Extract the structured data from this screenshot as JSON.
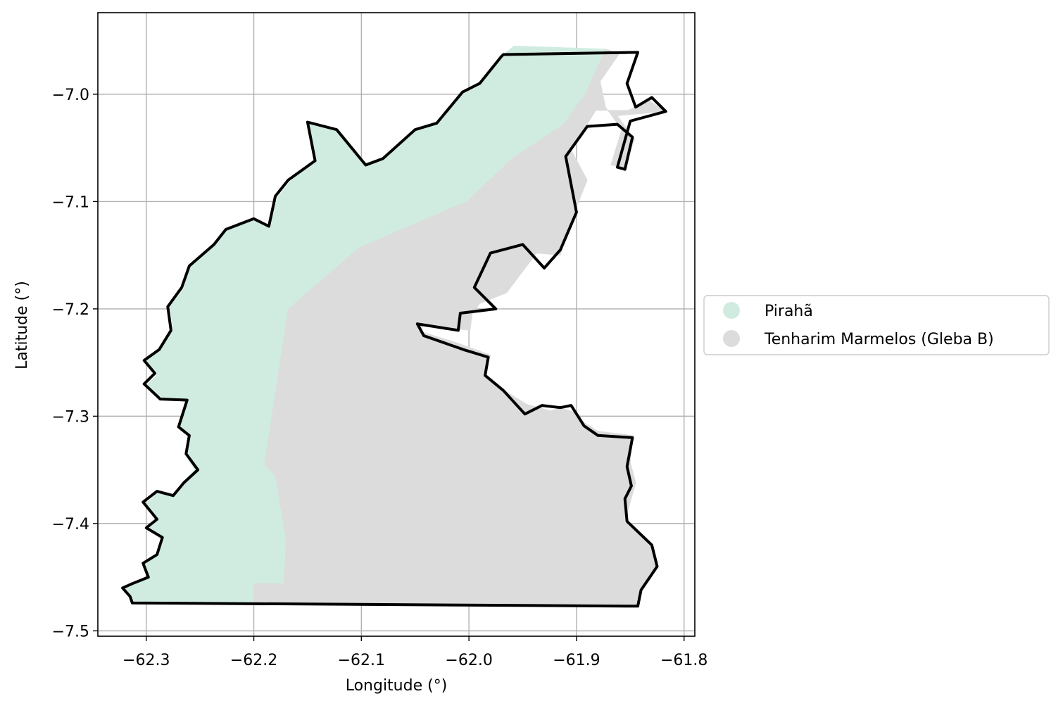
{
  "chart_data": {
    "type": "map",
    "xlabel": "Longitude (°)",
    "ylabel": "Latitude (°)",
    "xlim": [
      -62.345,
      -61.79
    ],
    "ylim": [
      -7.505,
      -6.924
    ],
    "xticks": [
      -62.3,
      -62.2,
      -62.1,
      -62.0,
      -61.9,
      -61.8
    ],
    "yticks": [
      -7.0,
      -7.1,
      -7.2,
      -7.3,
      -7.4,
      -7.5
    ],
    "xtick_labels": [
      "−62.3",
      "−62.2",
      "−62.1",
      "−62.0",
      "−61.9",
      "−61.8"
    ],
    "ytick_labels": [
      "−7.0",
      "−7.1",
      "−7.2",
      "−7.3",
      "−7.4",
      "−7.5"
    ],
    "grid": true,
    "legend_position": "outside-right",
    "regions": [
      {
        "name": "Pirahã",
        "color": "#d0ece0",
        "polygon": [
          [
            -62.313,
            -7.474
          ],
          [
            -62.315,
            -7.468
          ],
          [
            -62.32,
            -7.461
          ],
          [
            -62.312,
            -7.457
          ],
          [
            -62.298,
            -7.451
          ],
          [
            -62.303,
            -7.437
          ],
          [
            -62.29,
            -7.428
          ],
          [
            -62.285,
            -7.413
          ],
          [
            -62.3,
            -7.405
          ],
          [
            -62.29,
            -7.395
          ],
          [
            -62.3,
            -7.381
          ],
          [
            -62.288,
            -7.37
          ],
          [
            -62.275,
            -7.373
          ],
          [
            -62.267,
            -7.363
          ],
          [
            -62.255,
            -7.35
          ],
          [
            -62.263,
            -7.336
          ],
          [
            -62.26,
            -7.32
          ],
          [
            -62.27,
            -7.31
          ],
          [
            -62.262,
            -7.287
          ],
          [
            -62.285,
            -7.283
          ],
          [
            -62.3,
            -7.271
          ],
          [
            -62.29,
            -7.262
          ],
          [
            -62.3,
            -7.249
          ],
          [
            -62.286,
            -7.236
          ],
          [
            -62.275,
            -7.22
          ],
          [
            -62.278,
            -7.198
          ],
          [
            -62.265,
            -7.181
          ],
          [
            -62.26,
            -7.162
          ],
          [
            -62.236,
            -7.141
          ],
          [
            -62.225,
            -7.127
          ],
          [
            -62.2,
            -7.117
          ],
          [
            -62.185,
            -7.122
          ],
          [
            -62.178,
            -7.096
          ],
          [
            -62.167,
            -7.082
          ],
          [
            -62.143,
            -7.063
          ],
          [
            -62.148,
            -7.027
          ],
          [
            -62.122,
            -7.035
          ],
          [
            -62.096,
            -7.064
          ],
          [
            -62.08,
            -7.059
          ],
          [
            -62.05,
            -7.033
          ],
          [
            -62.03,
            -7.028
          ],
          [
            -62.006,
            -7.0
          ],
          [
            -61.99,
            -6.992
          ],
          [
            -61.968,
            -6.963
          ],
          [
            -61.958,
            -6.955
          ],
          [
            -61.873,
            -6.958
          ],
          [
            -61.892,
            -7.0
          ],
          [
            -61.912,
            -7.028
          ],
          [
            -61.96,
            -7.06
          ],
          [
            -62.002,
            -7.1
          ],
          [
            -62.102,
            -7.143
          ],
          [
            -62.168,
            -7.2
          ],
          [
            -62.19,
            -7.345
          ],
          [
            -62.18,
            -7.355
          ],
          [
            -62.17,
            -7.415
          ],
          [
            -62.172,
            -7.456
          ],
          [
            -62.2,
            -7.456
          ],
          [
            -62.2,
            -7.474
          ]
        ]
      },
      {
        "name": "Tenharim Marmelos (Gleba B)",
        "color": "#dcdcdc",
        "polygon": [
          [
            -61.873,
            -6.958
          ],
          [
            -61.86,
            -6.962
          ],
          [
            -61.878,
            -6.988
          ],
          [
            -61.873,
            -7.012
          ],
          [
            -61.858,
            -7.033
          ],
          [
            -61.868,
            -7.066
          ],
          [
            -61.855,
            -7.068
          ],
          [
            -61.846,
            -7.042
          ],
          [
            -61.862,
            -7.02
          ],
          [
            -61.818,
            -7.016
          ],
          [
            -61.832,
            -7.006
          ],
          [
            -61.852,
            -7.015
          ],
          [
            -61.882,
            -7.015
          ],
          [
            -61.905,
            -7.052
          ],
          [
            -61.89,
            -7.08
          ],
          [
            -61.906,
            -7.12
          ],
          [
            -61.915,
            -7.15
          ],
          [
            -61.937,
            -7.148
          ],
          [
            -61.965,
            -7.185
          ],
          [
            -61.99,
            -7.195
          ],
          [
            -61.997,
            -7.205
          ],
          [
            -61.999,
            -7.22
          ],
          [
            -62.04,
            -7.215
          ],
          [
            -62.048,
            -7.22
          ],
          [
            -62.01,
            -7.232
          ],
          [
            -61.98,
            -7.243
          ],
          [
            -61.985,
            -7.261
          ],
          [
            -61.968,
            -7.275
          ],
          [
            -61.956,
            -7.283
          ],
          [
            -61.946,
            -7.289
          ],
          [
            -61.935,
            -7.292
          ],
          [
            -61.924,
            -7.295
          ],
          [
            -61.915,
            -7.292
          ],
          [
            -61.9,
            -7.297
          ],
          [
            -61.893,
            -7.306
          ],
          [
            -61.88,
            -7.314
          ],
          [
            -61.848,
            -7.318
          ],
          [
            -61.85,
            -7.343
          ],
          [
            -61.845,
            -7.362
          ],
          [
            -61.85,
            -7.38
          ],
          [
            -61.855,
            -7.399
          ],
          [
            -61.829,
            -7.421
          ],
          [
            -61.825,
            -7.438
          ],
          [
            -61.84,
            -7.463
          ],
          [
            -61.843,
            -7.476
          ],
          [
            -62.2,
            -7.474
          ],
          [
            -62.2,
            -7.456
          ],
          [
            -62.172,
            -7.456
          ],
          [
            -62.17,
            -7.415
          ],
          [
            -62.18,
            -7.355
          ],
          [
            -62.19,
            -7.345
          ],
          [
            -62.168,
            -7.2
          ],
          [
            -62.102,
            -7.143
          ],
          [
            -62.002,
            -7.1
          ],
          [
            -61.96,
            -7.06
          ],
          [
            -61.912,
            -7.028
          ],
          [
            -61.892,
            -7.0
          ]
        ]
      }
    ],
    "boundary": {
      "color": "#000000",
      "polygon": [
        [
          -61.968,
          -6.963
        ],
        [
          -61.843,
          -6.961
        ],
        [
          -61.853,
          -6.99
        ],
        [
          -61.845,
          -7.012
        ],
        [
          -61.83,
          -7.003
        ],
        [
          -61.817,
          -7.016
        ],
        [
          -61.85,
          -7.025
        ],
        [
          -61.862,
          -7.068
        ],
        [
          -61.855,
          -7.07
        ],
        [
          -61.848,
          -7.04
        ],
        [
          -61.862,
          -7.028
        ],
        [
          -61.89,
          -7.03
        ],
        [
          -61.91,
          -7.058
        ],
        [
          -61.9,
          -7.11
        ],
        [
          -61.915,
          -7.145
        ],
        [
          -61.93,
          -7.162
        ],
        [
          -61.95,
          -7.14
        ],
        [
          -61.98,
          -7.148
        ],
        [
          -61.995,
          -7.18
        ],
        [
          -61.975,
          -7.2
        ],
        [
          -62.008,
          -7.204
        ],
        [
          -62.01,
          -7.22
        ],
        [
          -62.048,
          -7.214
        ],
        [
          -62.042,
          -7.225
        ],
        [
          -62.005,
          -7.238
        ],
        [
          -61.982,
          -7.245
        ],
        [
          -61.985,
          -7.262
        ],
        [
          -61.968,
          -7.276
        ],
        [
          -61.948,
          -7.298
        ],
        [
          -61.932,
          -7.29
        ],
        [
          -61.915,
          -7.292
        ],
        [
          -61.905,
          -7.29
        ],
        [
          -61.893,
          -7.309
        ],
        [
          -61.88,
          -7.318
        ],
        [
          -61.848,
          -7.32
        ],
        [
          -61.853,
          -7.347
        ],
        [
          -61.849,
          -7.365
        ],
        [
          -61.855,
          -7.377
        ],
        [
          -61.853,
          -7.398
        ],
        [
          -61.83,
          -7.42
        ],
        [
          -61.825,
          -7.44
        ],
        [
          -61.84,
          -7.462
        ],
        [
          -61.843,
          -7.477
        ],
        [
          -62.313,
          -7.474
        ],
        [
          -62.315,
          -7.468
        ],
        [
          -62.322,
          -7.46
        ],
        [
          -62.313,
          -7.456
        ],
        [
          -62.298,
          -7.45
        ],
        [
          -62.303,
          -7.437
        ],
        [
          -62.29,
          -7.429
        ],
        [
          -62.285,
          -7.413
        ],
        [
          -62.3,
          -7.404
        ],
        [
          -62.29,
          -7.396
        ],
        [
          -62.303,
          -7.38
        ],
        [
          -62.29,
          -7.37
        ],
        [
          -62.275,
          -7.374
        ],
        [
          -62.265,
          -7.362
        ],
        [
          -62.252,
          -7.35
        ],
        [
          -62.263,
          -7.335
        ],
        [
          -62.26,
          -7.318
        ],
        [
          -62.27,
          -7.31
        ],
        [
          -62.262,
          -7.285
        ],
        [
          -62.287,
          -7.284
        ],
        [
          -62.302,
          -7.27
        ],
        [
          -62.292,
          -7.26
        ],
        [
          -62.302,
          -7.248
        ],
        [
          -62.288,
          -7.238
        ],
        [
          -62.277,
          -7.22
        ],
        [
          -62.28,
          -7.198
        ],
        [
          -62.267,
          -7.18
        ],
        [
          -62.26,
          -7.16
        ],
        [
          -62.237,
          -7.14
        ],
        [
          -62.226,
          -7.126
        ],
        [
          -62.2,
          -7.116
        ],
        [
          -62.186,
          -7.123
        ],
        [
          -62.18,
          -7.095
        ],
        [
          -62.168,
          -7.08
        ],
        [
          -62.143,
          -7.062
        ],
        [
          -62.15,
          -7.026
        ],
        [
          -62.123,
          -7.033
        ],
        [
          -62.096,
          -7.066
        ],
        [
          -62.08,
          -7.06
        ],
        [
          -62.05,
          -7.033
        ],
        [
          -62.03,
          -7.027
        ],
        [
          -62.006,
          -6.998
        ],
        [
          -61.99,
          -6.99
        ],
        [
          -61.97,
          -6.965
        ]
      ]
    },
    "legend": [
      {
        "label": "Pirahã",
        "color": "#d0ece0"
      },
      {
        "label": "Tenharim Marmelos (Gleba B)",
        "color": "#dcdcdc"
      }
    ]
  }
}
